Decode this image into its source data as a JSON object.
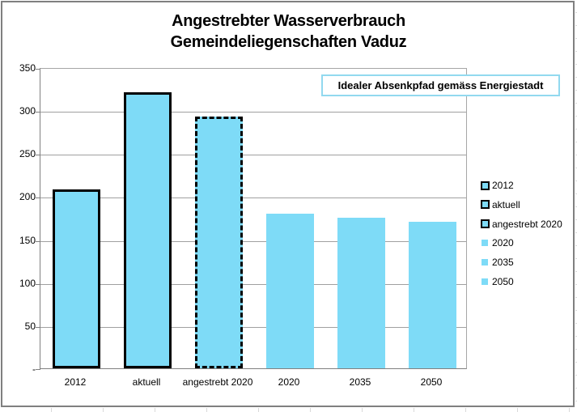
{
  "title": {
    "line1": "Angestrebter Wasserverbrauch",
    "line2": "Gemeindeliegenschaften Vaduz"
  },
  "annotation": {
    "text": "Idealer Absenkpfad gemäss Energiestadt"
  },
  "chart_data": {
    "type": "bar",
    "title": "Angestrebter Wasserverbrauch Gemeindeliegenschaften Vaduz",
    "categories": [
      "2012",
      "aktuell",
      "angestrebt 2020",
      "2020",
      "2035",
      "2050"
    ],
    "values": [
      208,
      321,
      293,
      180,
      175,
      170
    ],
    "xlabel": "",
    "ylabel": "",
    "ylim": [
      0,
      350
    ],
    "ytick_step": 50,
    "ytick_labels_top_to_bottom": [
      "350",
      "300",
      "250",
      "200",
      "150",
      "100",
      "50",
      "-"
    ],
    "grid": true,
    "legend_position": "right",
    "bar_border_styles": [
      "solid",
      "solid",
      "dashed",
      "none",
      "none",
      "none"
    ],
    "annotation": "Idealer Absenkpfad gemäss Energiestadt",
    "legend_entries": [
      {
        "label": "2012",
        "marker": "solid-border"
      },
      {
        "label": "aktuell",
        "marker": "solid-border"
      },
      {
        "label": "angestrebt 2020",
        "marker": "dashed-border"
      },
      {
        "label": "2020",
        "marker": "plain"
      },
      {
        "label": "2035",
        "marker": "plain"
      },
      {
        "label": "2050",
        "marker": "plain"
      }
    ]
  },
  "colors": {
    "bar_fill": "#7EDBF7",
    "bar_border": "#000000",
    "gridline": "#A0A0A0",
    "axis": "#808080",
    "chart_frame": "#808080",
    "annotation_border": "#92D9EF",
    "sheet_gridline": "#D9D9D9",
    "text": "#000000"
  }
}
